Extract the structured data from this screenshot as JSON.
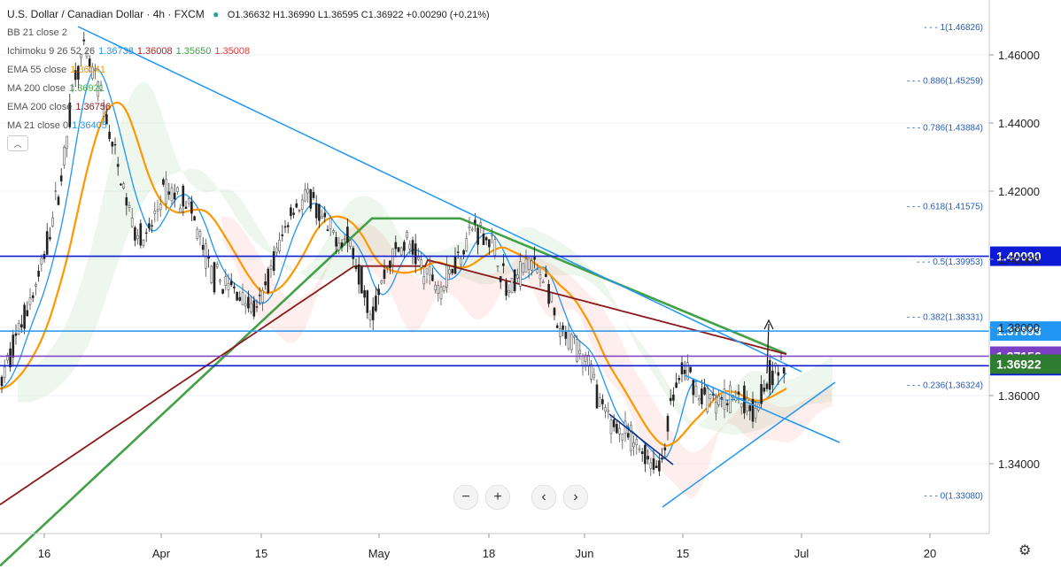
{
  "header": {
    "title": "U.S. Dollar / Canadian Dollar · 4h · FXCM",
    "ohlc": "O1.36632 H1.36990 L1.36595 C1.36922 +0.00290 (+0.21%)"
  },
  "indicators": [
    {
      "name": "BB 21 close 2",
      "values": []
    },
    {
      "name": "Ichimoku 9 26 52 26",
      "values": [
        {
          "text": "1.36738",
          "color": "#2196f3"
        },
        {
          "text": "1.36008",
          "color": "#b71c1c"
        },
        {
          "text": "1.35650",
          "color": "#43a047"
        },
        {
          "text": "1.35008",
          "color": "#e53935"
        }
      ]
    },
    {
      "name": "EMA 55 close",
      "values": [
        {
          "text": "1.36041",
          "color": "#ff9800"
        }
      ]
    },
    {
      "name": "MA 200 close",
      "values": [
        {
          "text": "1.36921",
          "color": "#4caf50"
        }
      ]
    },
    {
      "name": "EMA 200 close",
      "values": [
        {
          "text": "1.36756",
          "color": "#8b1a1a"
        }
      ]
    },
    {
      "name": "MA 21 close 0",
      "values": [
        {
          "text": "1.36405",
          "color": "#2196f3"
        }
      ]
    }
  ],
  "chart_data": {
    "type": "candlestick",
    "ylim": [
      1.326,
      1.47
    ],
    "y_ticks": [
      1.34,
      1.36,
      1.38,
      1.4,
      1.42,
      1.44,
      1.46
    ],
    "y_tick_labels": [
      "1.34000",
      "1.36000",
      "1.38000",
      "1.40000",
      "1.42000",
      "1.44000",
      "1.46000"
    ],
    "x_tick_labels": [
      "16",
      "Apr",
      "15",
      "May",
      "18",
      "Jun",
      "15",
      "Jul",
      "20"
    ],
    "fib_levels": [
      {
        "ratio": "1",
        "value": 1.46826
      },
      {
        "ratio": "0.886",
        "value": 1.45259
      },
      {
        "ratio": "0.786",
        "value": 1.43884
      },
      {
        "ratio": "0.618",
        "value": 1.41575
      },
      {
        "ratio": "0.5",
        "value": 1.39953
      },
      {
        "ratio": "0.382",
        "value": 1.38331
      },
      {
        "ratio": "0.236",
        "value": 1.36324
      },
      {
        "ratio": "0",
        "value": 1.3308
      }
    ],
    "horizontal_levels": [
      {
        "value": 1.4009,
        "label": "1.40090",
        "color": "#0d1bd6"
      },
      {
        "value": 1.37893,
        "label": "1.37893",
        "color": "#2196f3"
      },
      {
        "value": 1.37156,
        "label": "1.37156",
        "color": "#7b3fc4"
      },
      {
        "value": 1.36876,
        "label": "1.36876",
        "color": "#0d1bd6"
      }
    ],
    "last_price": {
      "value": 1.36922,
      "label": "1.36922",
      "color": "#2e7d32"
    }
  },
  "controls": {
    "zoom_out": "−",
    "zoom_in": "+",
    "prev": "‹",
    "next": "›",
    "settings": "⚙",
    "collapse": "︿"
  }
}
